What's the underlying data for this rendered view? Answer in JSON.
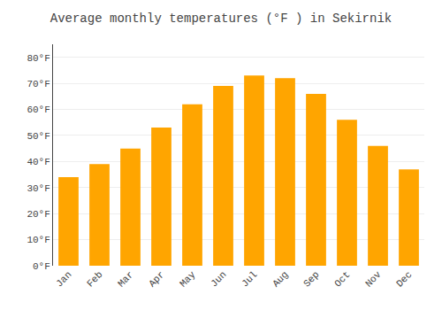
{
  "chart_data": {
    "type": "bar",
    "title": "Average monthly temperatures (°F ) in Sekirnik",
    "categories": [
      "Jan",
      "Feb",
      "Mar",
      "Apr",
      "May",
      "Jun",
      "Jul",
      "Aug",
      "Sep",
      "Oct",
      "Nov",
      "Dec"
    ],
    "values": [
      34,
      39,
      45,
      53,
      62,
      69,
      73,
      72,
      66,
      56,
      46,
      37
    ],
    "color": "#FFA500",
    "ylim": [
      0,
      85
    ],
    "yticks": [
      {
        "value": 0,
        "label": "0°F"
      },
      {
        "value": 10,
        "label": "10°F"
      },
      {
        "value": 20,
        "label": "20°F"
      },
      {
        "value": 30,
        "label": "30°F"
      },
      {
        "value": 40,
        "label": "40°F"
      },
      {
        "value": 50,
        "label": "50°F"
      },
      {
        "value": 60,
        "label": "60°F"
      },
      {
        "value": 70,
        "label": "70°F"
      },
      {
        "value": 80,
        "label": "80°F"
      }
    ],
    "grid": true
  }
}
